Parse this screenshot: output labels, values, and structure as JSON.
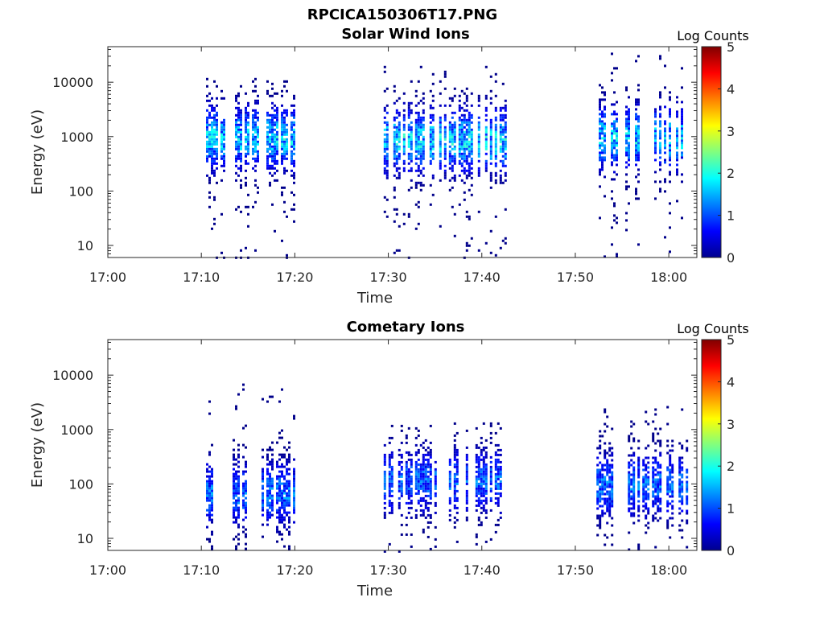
{
  "figure_title": "RPCICA150306T17.PNG",
  "chart_data": [
    {
      "type": "heatmap",
      "title": "Solar Wind Ions",
      "xlabel": "Time",
      "ylabel": "Energy (eV)",
      "x_ticks": [
        "17:00",
        "17:10",
        "17:20",
        "17:30",
        "17:40",
        "17:50",
        "18:00"
      ],
      "xlim": [
        "17:00",
        "18:03"
      ],
      "y_scale": "log",
      "y_ticks": [
        10,
        100,
        1000,
        10000
      ],
      "y_tick_labels": [
        "10",
        "100",
        "1000",
        "10000"
      ],
      "ylim": [
        6,
        45000
      ],
      "colorbar": {
        "label": "Log Counts",
        "range": [
          0,
          5
        ],
        "ticks": [
          "0",
          "1",
          "2",
          "3",
          "4",
          "5"
        ],
        "colormap": "jet"
      },
      "grid": false,
      "bursts": [
        {
          "t_start": "17:10.5",
          "t_end": "17:20.0",
          "peak_energy_eV": 1000,
          "emin_eV": 6,
          "emax_eV": 12000,
          "max_log_counts": 2.2
        },
        {
          "t_start": "17:29.5",
          "t_end": "17:42.5",
          "peak_energy_eV": 900,
          "emin_eV": 6,
          "emax_eV": 20000,
          "max_log_counts": 2.3
        },
        {
          "t_start": "17:52.5",
          "t_end": "18:02.0",
          "peak_energy_eV": 1000,
          "emin_eV": 6,
          "emax_eV": 35000,
          "max_log_counts": 2.2
        }
      ]
    },
    {
      "type": "heatmap",
      "title": "Cometary Ions",
      "xlabel": "Time",
      "ylabel": "Energy (eV)",
      "x_ticks": [
        "17:00",
        "17:10",
        "17:20",
        "17:30",
        "17:40",
        "17:50",
        "18:00"
      ],
      "xlim": [
        "17:00",
        "18:03"
      ],
      "y_scale": "log",
      "y_ticks": [
        10,
        100,
        1000,
        10000
      ],
      "y_tick_labels": [
        "10",
        "100",
        "1000",
        "10000"
      ],
      "ylim": [
        6,
        45000
      ],
      "colorbar": {
        "label": "Log Counts",
        "range": [
          0,
          5
        ],
        "ticks": [
          "0",
          "1",
          "2",
          "3",
          "4",
          "5"
        ],
        "colormap": "jet"
      },
      "grid": false,
      "bursts": [
        {
          "t_start": "17:10.5",
          "t_end": "17:20.0",
          "peak_energy_eV": 70,
          "emin_eV": 6,
          "emax_eV": 7000,
          "max_log_counts": 1.6
        },
        {
          "t_start": "17:29.5",
          "t_end": "17:42.5",
          "peak_energy_eV": 120,
          "emin_eV": 6,
          "emax_eV": 1500,
          "max_log_counts": 1.5
        },
        {
          "t_start": "17:52.0",
          "t_end": "18:02.0",
          "peak_energy_eV": 100,
          "emin_eV": 6,
          "emax_eV": 3000,
          "max_log_counts": 1.6
        }
      ]
    }
  ]
}
